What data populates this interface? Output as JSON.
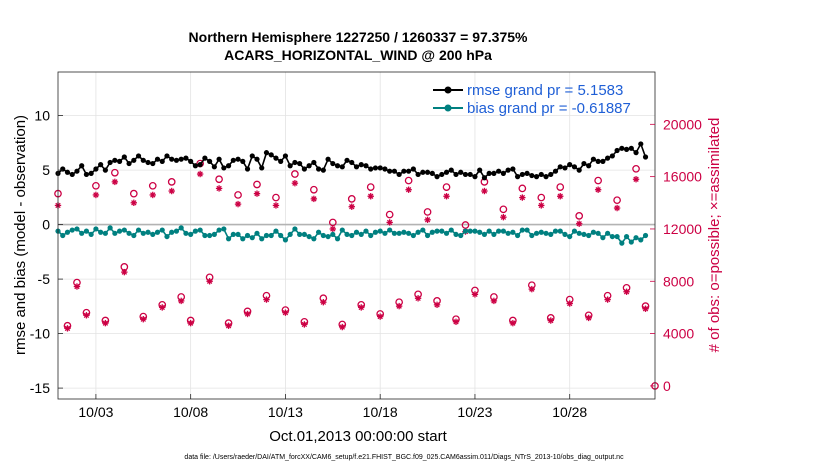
{
  "chart_data": {
    "type": "line",
    "title": "Northern Hemisphere 1227250 / 1260337 = 97.375%",
    "subtitle": "ACARS_HORIZONTAL_WIND @ 200 hPa",
    "xlabel": "Oct.01,2013 00:00:00 start",
    "ylabel_left": "rmse and bias (model - observation)",
    "ylabel_right": "# of obs: o=possible; ×=assimilated",
    "ylim_left": [
      -16,
      14
    ],
    "ylim_right": [
      -1000,
      24000
    ],
    "xlim_days": [
      0,
      31.5
    ],
    "x_ticks": [
      {
        "day": 2,
        "label": "10/03"
      },
      {
        "day": 7,
        "label": "10/08"
      },
      {
        "day": 12,
        "label": "10/13"
      },
      {
        "day": 17,
        "label": "10/18"
      },
      {
        "day": 22,
        "label": "10/23"
      },
      {
        "day": 27,
        "label": "10/28"
      }
    ],
    "y_ticks_left": [
      "10",
      "5",
      "0",
      "-5",
      "-10",
      "-15"
    ],
    "y_ticks_left_values": [
      10,
      5,
      0,
      -5,
      -10,
      -15
    ],
    "y_ticks_right": [
      "20000",
      "16000",
      "12000",
      "8000",
      "4000",
      "0"
    ],
    "y_ticks_right_values": [
      20000,
      16000,
      12000,
      8000,
      4000,
      0
    ],
    "grid": true,
    "zero_line": 0,
    "legend_position": "top-right",
    "footnote": "data file: /Users/raeder/DAI/ATM_forcXX/CAM6_setup/f.e21.FHIST_BGC.f09_025.CAM6assim.011/Diags_NTrS_2013-10/obs_diag_output.nc",
    "series": [
      {
        "name": "rmse grand pr = 5.1583",
        "color": "#000000",
        "marker": "filled-circle",
        "x": [
          0,
          0.25,
          0.5,
          0.75,
          1,
          1.25,
          1.5,
          1.75,
          2,
          2.25,
          2.5,
          2.75,
          3,
          3.25,
          3.5,
          3.75,
          4,
          4.25,
          4.5,
          4.75,
          5,
          5.25,
          5.5,
          5.75,
          6,
          6.25,
          6.5,
          6.75,
          7,
          7.25,
          7.5,
          7.75,
          8,
          8.25,
          8.5,
          8.75,
          9,
          9.25,
          9.5,
          9.75,
          10,
          10.25,
          10.5,
          10.75,
          11,
          11.25,
          11.5,
          11.75,
          12,
          12.25,
          12.5,
          12.75,
          13,
          13.25,
          13.5,
          13.75,
          14,
          14.25,
          14.5,
          14.75,
          15,
          15.25,
          15.5,
          15.75,
          16,
          16.25,
          16.5,
          16.75,
          17,
          17.25,
          17.5,
          17.75,
          18,
          18.25,
          18.5,
          18.75,
          19,
          19.25,
          19.5,
          19.75,
          20,
          20.25,
          20.5,
          20.75,
          21,
          21.25,
          21.5,
          21.75,
          22,
          22.25,
          22.5,
          22.75,
          23,
          23.25,
          23.5,
          23.75,
          24,
          24.25,
          24.5,
          24.75,
          25,
          25.25,
          25.5,
          25.75,
          26,
          26.25,
          26.5,
          26.75,
          27,
          27.25,
          27.5,
          27.75,
          28,
          28.25,
          28.5,
          28.75,
          29,
          29.25,
          29.5,
          29.75,
          30,
          30.25,
          30.5,
          30.75,
          31
        ],
        "y": [
          4.7,
          5.1,
          4.8,
          4.6,
          4.9,
          5.4,
          4.6,
          4.7,
          5.1,
          5.5,
          5.0,
          5.7,
          5.9,
          5.8,
          6.2,
          5.6,
          5.9,
          6.3,
          5.9,
          5.7,
          5.6,
          6.0,
          5.8,
          6.3,
          6.0,
          5.9,
          6.0,
          6.1,
          5.8,
          5.4,
          5.5,
          6.1,
          5.8,
          5.3,
          6.0,
          5.2,
          5.4,
          5.9,
          6.0,
          5.8,
          5.1,
          6.3,
          6.0,
          5.2,
          6.6,
          6.4,
          6.1,
          5.8,
          6.3,
          5.4,
          5.7,
          5.6,
          5.1,
          5.4,
          5.7,
          5.1,
          5.0,
          6.0,
          5.6,
          5.4,
          5.3,
          5.9,
          5.7,
          5.3,
          5.5,
          5.4,
          5.1,
          5.2,
          5.2,
          5.1,
          4.9,
          4.9,
          4.6,
          4.9,
          4.9,
          5.1,
          4.6,
          4.8,
          4.8,
          4.7,
          4.4,
          4.6,
          4.8,
          5.0,
          4.6,
          4.8,
          4.6,
          4.6,
          4.4,
          5.0,
          4.3,
          4.7,
          4.7,
          4.9,
          4.7,
          5.0,
          5.1,
          4.4,
          4.6,
          4.7,
          4.5,
          4.4,
          4.6,
          4.4,
          4.6,
          4.9,
          5.3,
          5.2,
          5.5,
          5.3,
          5.0,
          5.6,
          5.4,
          6.0,
          5.8,
          5.8,
          6.1,
          6.3,
          6.8,
          7.0,
          6.9,
          7.0,
          6.6,
          7.4,
          6.2
        ]
      },
      {
        "name": "bias grand pr = -0.61887",
        "color": "#008080",
        "marker": "filled-circle",
        "x": [
          0,
          0.25,
          0.5,
          0.75,
          1,
          1.25,
          1.5,
          1.75,
          2,
          2.25,
          2.5,
          2.75,
          3,
          3.25,
          3.5,
          3.75,
          4,
          4.25,
          4.5,
          4.75,
          5,
          5.25,
          5.5,
          5.75,
          6,
          6.25,
          6.5,
          6.75,
          7,
          7.25,
          7.5,
          7.75,
          8,
          8.25,
          8.5,
          8.75,
          9,
          9.25,
          9.5,
          9.75,
          10,
          10.25,
          10.5,
          10.75,
          11,
          11.25,
          11.5,
          11.75,
          12,
          12.25,
          12.5,
          12.75,
          13,
          13.25,
          13.5,
          13.75,
          14,
          14.25,
          14.5,
          14.75,
          15,
          15.25,
          15.5,
          15.75,
          16,
          16.25,
          16.5,
          16.75,
          17,
          17.25,
          17.5,
          17.75,
          18,
          18.25,
          18.5,
          18.75,
          19,
          19.25,
          19.5,
          19.75,
          20,
          20.25,
          20.5,
          20.75,
          21,
          21.25,
          21.5,
          21.75,
          22,
          22.25,
          22.5,
          22.75,
          23,
          23.25,
          23.5,
          23.75,
          24,
          24.25,
          24.5,
          24.75,
          25,
          25.25,
          25.5,
          25.75,
          26,
          26.25,
          26.5,
          26.75,
          27,
          27.25,
          27.5,
          27.75,
          28,
          28.25,
          28.5,
          28.75,
          29,
          29.25,
          29.5,
          29.75,
          30,
          30.25,
          30.5,
          30.75,
          31
        ],
        "y": [
          -0.6,
          -1.0,
          -0.7,
          -0.5,
          -0.4,
          -0.8,
          -0.6,
          -0.9,
          -0.4,
          -0.7,
          -0.8,
          -0.3,
          -0.8,
          -0.6,
          -0.5,
          -0.8,
          -1.0,
          -0.5,
          -0.8,
          -0.7,
          -0.9,
          -0.7,
          -0.5,
          -1.1,
          -0.7,
          -0.6,
          -0.3,
          -0.8,
          -0.9,
          -0.6,
          -0.5,
          -1.0,
          -1.0,
          -0.9,
          -0.5,
          -0.4,
          -1.3,
          -0.9,
          -0.9,
          -1.3,
          -1.0,
          -1.2,
          -0.8,
          -1.3,
          -1.0,
          -1.0,
          -0.6,
          -1.0,
          -1.4,
          -0.9,
          -0.4,
          -0.9,
          -0.9,
          -1.1,
          -1.3,
          -0.7,
          -1.0,
          -1.1,
          -0.9,
          -1.3,
          -0.5,
          -0.9,
          -1.0,
          -0.7,
          -0.9,
          -0.6,
          -1.0,
          -0.7,
          -0.6,
          -0.8,
          -0.5,
          -0.8,
          -0.8,
          -0.7,
          -0.8,
          -1.0,
          -0.7,
          -0.5,
          -1.0,
          -0.7,
          -0.6,
          -0.6,
          -0.8,
          -0.5,
          -0.9,
          -1.0,
          -0.6,
          -0.6,
          -0.6,
          -0.7,
          -0.9,
          -0.6,
          -0.9,
          -0.6,
          -0.6,
          -0.8,
          -0.7,
          -1.0,
          -0.5,
          -0.5,
          -1.0,
          -0.8,
          -0.7,
          -0.8,
          -0.9,
          -0.6,
          -0.6,
          -0.9,
          -1.1,
          -0.6,
          -0.8,
          -0.9,
          -1.0,
          -0.7,
          -0.8,
          -1.2,
          -0.8,
          -1.1,
          -1.1,
          -1.7,
          -1.1,
          -1.6,
          -1.2,
          -1.4,
          -1.0
        ]
      },
      {
        "name": "# obs possible",
        "color": "#cc0044",
        "marker": "open-circle",
        "axis": "right",
        "x": [
          0,
          0.5,
          1,
          1.5,
          2,
          2.5,
          3,
          3.5,
          4,
          4.5,
          5,
          5.5,
          6,
          6.5,
          7,
          7.5,
          8,
          8.5,
          9,
          9.5,
          10,
          10.5,
          11,
          11.5,
          12,
          12.5,
          13,
          13.5,
          14,
          14.5,
          15,
          15.5,
          16,
          16.5,
          17,
          17.5,
          18,
          18.5,
          19,
          19.5,
          20,
          20.5,
          21,
          21.5,
          22,
          22.5,
          23,
          23.5,
          24,
          24.5,
          25,
          25.5,
          26,
          26.5,
          27,
          27.5,
          28,
          28.5,
          29,
          29.5,
          30,
          30.5,
          31
        ],
        "y": [
          14700,
          4600,
          7900,
          5600,
          15300,
          5000,
          16300,
          9100,
          14700,
          5300,
          15300,
          6200,
          15600,
          6800,
          5000,
          17000,
          8300,
          15800,
          4800,
          14600,
          5700,
          15400,
          6900,
          14400,
          5800,
          16200,
          4900,
          15000,
          6700,
          12500,
          4700,
          14300,
          6200,
          15200,
          5500,
          13100,
          6400,
          15700,
          7000,
          13300,
          6500,
          15200,
          5100,
          12300,
          7300,
          15600,
          6800,
          13500,
          5000,
          15100,
          7700,
          14400,
          5200,
          15200,
          6600,
          13000,
          5400,
          15700,
          6900,
          14200,
          7500,
          16600,
          6100
        ],
        "assimilated": [
          13800,
          4400,
          7600,
          5400,
          14600,
          4800,
          15600,
          8700,
          14000,
          5100,
          14600,
          6000,
          14900,
          6500,
          4800,
          16200,
          8000,
          15100,
          4600,
          13900,
          5500,
          14700,
          6600,
          13800,
          5600,
          15500,
          4700,
          14300,
          6400,
          12000,
          4500,
          13700,
          6000,
          14500,
          5300,
          12500,
          6100,
          15000,
          6700,
          12700,
          6200,
          14500,
          4900,
          11800,
          7000,
          14900,
          6500,
          12900,
          4800,
          14400,
          7400,
          13800,
          5000,
          14500,
          6300,
          12400,
          5200,
          15000,
          6600,
          13600,
          7200,
          15800,
          5900
        ]
      }
    ]
  }
}
